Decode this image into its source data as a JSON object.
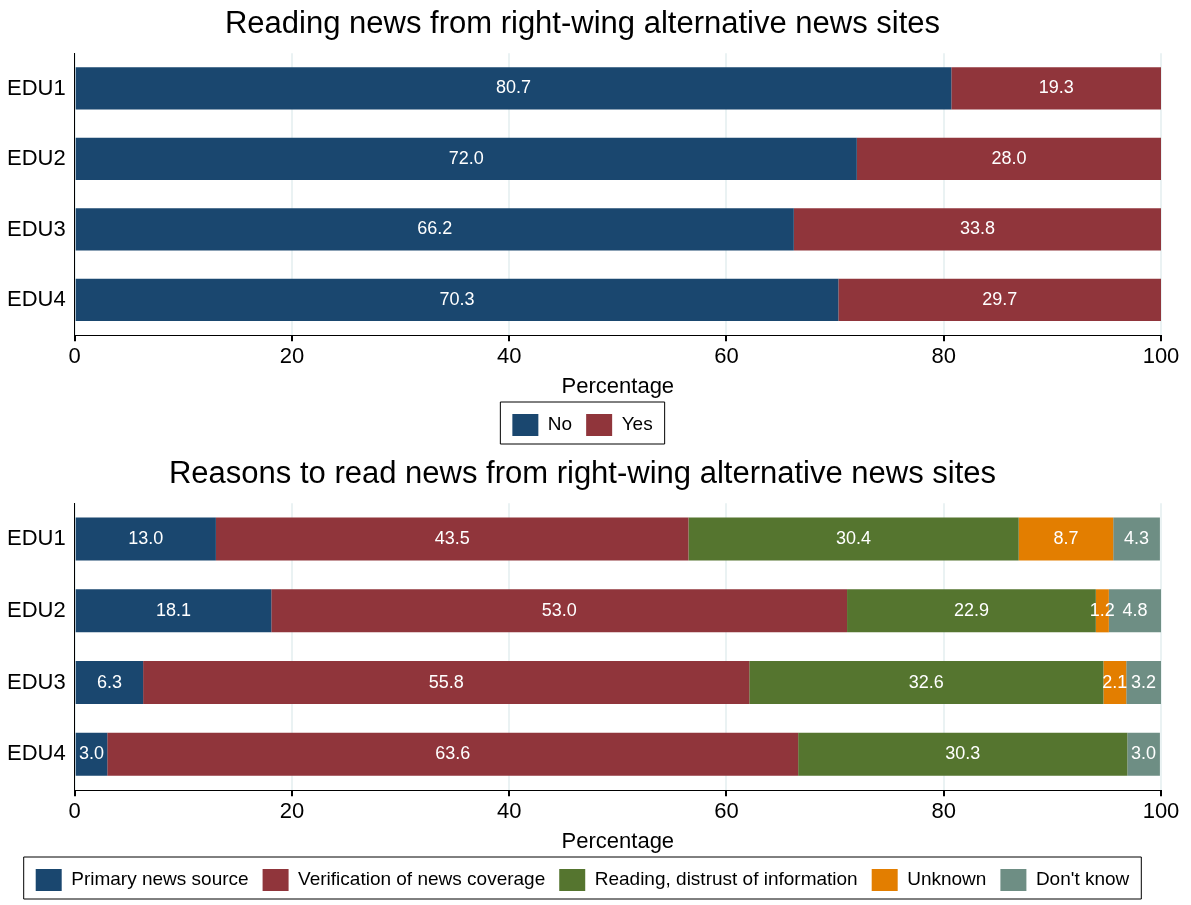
{
  "chart_data": [
    {
      "type": "bar",
      "orientation": "horizontal",
      "stacked": true,
      "title": "Reading news from right-wing alternative news sites",
      "xlabel": "Percentage",
      "categories": [
        "EDU1",
        "EDU2",
        "EDU3",
        "EDU4"
      ],
      "xlim": [
        0,
        100
      ],
      "xticks": [
        0,
        20,
        40,
        60,
        80,
        100
      ],
      "grid": "x",
      "legend": "bottom",
      "series": [
        {
          "name": "No",
          "color": "#1a476f",
          "values": [
            80.7,
            72.0,
            66.2,
            70.3
          ],
          "value_labels": [
            "80.7",
            "72.0",
            "66.2",
            "70.3"
          ]
        },
        {
          "name": "Yes",
          "color": "#90353b",
          "values": [
            19.3,
            28.0,
            33.8,
            29.7
          ],
          "value_labels": [
            "19.3",
            "28.0",
            "33.8",
            "29.7"
          ]
        }
      ]
    },
    {
      "type": "bar",
      "orientation": "horizontal",
      "stacked": true,
      "title": "Reasons to read news from right-wing alternative news sites",
      "xlabel": "Percentage",
      "categories": [
        "EDU1",
        "EDU2",
        "EDU3",
        "EDU4"
      ],
      "xlim": [
        0,
        100
      ],
      "xticks": [
        0,
        20,
        40,
        60,
        80,
        100
      ],
      "grid": "x",
      "legend": "bottom",
      "series": [
        {
          "name": "Primary news source",
          "color": "#1a476f",
          "values": [
            13.0,
            18.1,
            6.3,
            3.0
          ],
          "value_labels": [
            "13.0",
            "18.1",
            "6.3",
            "3.0"
          ]
        },
        {
          "name": "Verification of news coverage",
          "color": "#90353b",
          "values": [
            43.5,
            53.0,
            55.8,
            63.6
          ],
          "value_labels": [
            "43.5",
            "53.0",
            "55.8",
            "63.6"
          ]
        },
        {
          "name": "Reading, distrust of information",
          "color": "#55752f",
          "values": [
            30.4,
            22.9,
            32.6,
            30.3
          ],
          "value_labels": [
            "30.4",
            "22.9",
            "32.6",
            "30.3"
          ]
        },
        {
          "name": "Unknown",
          "color": "#e37e00",
          "values": [
            8.7,
            1.2,
            2.1,
            null
          ],
          "value_labels": [
            "8.7",
            "1.2",
            "2.1",
            null
          ]
        },
        {
          "name": "Don't know",
          "color": "#6e8e84",
          "values": [
            4.3,
            4.8,
            3.2,
            3.0
          ],
          "value_labels": [
            "4.3",
            "4.8",
            "3.2",
            "3.0"
          ]
        }
      ]
    }
  ]
}
